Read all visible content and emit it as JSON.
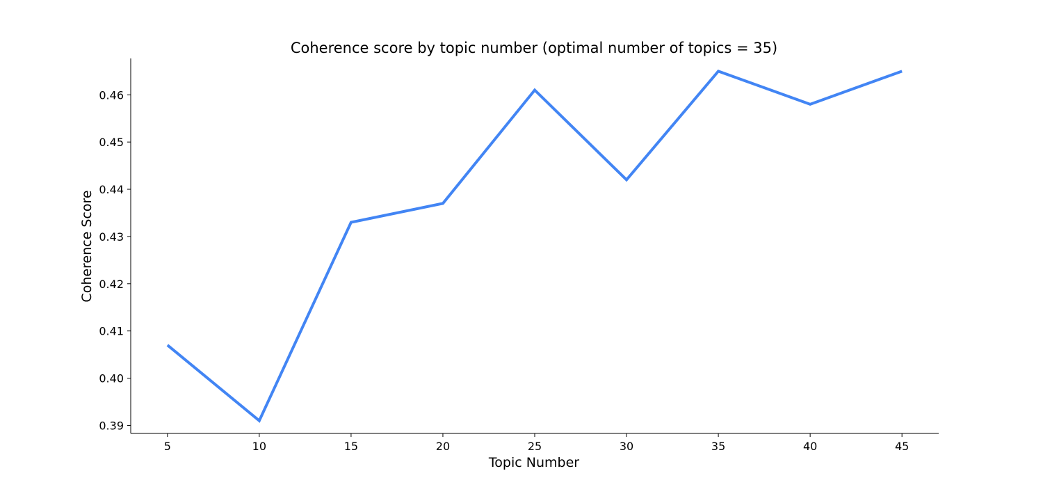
{
  "chart_data": {
    "type": "line",
    "title": "Coherence score by topic number (optimal number of topics = 35)",
    "xlabel": "Topic Number",
    "ylabel": "Coherence Score",
    "x": [
      5,
      10,
      15,
      20,
      25,
      30,
      35,
      40,
      45
    ],
    "series": [
      {
        "values": [
          0.407,
          0.391,
          0.433,
          0.437,
          0.461,
          0.442,
          0.465,
          0.458,
          0.465
        ],
        "color": "#4285f4"
      }
    ],
    "x_ticks": [
      "5",
      "10",
      "15",
      "20",
      "25",
      "30",
      "35",
      "40",
      "45"
    ],
    "y_ticks": [
      "0.39",
      "0.40",
      "0.41",
      "0.42",
      "0.43",
      "0.44",
      "0.45",
      "0.46"
    ],
    "xlim": [
      3.0,
      47.0
    ],
    "ylim": [
      0.3883,
      0.4677
    ],
    "grid": false,
    "legend": "none"
  }
}
